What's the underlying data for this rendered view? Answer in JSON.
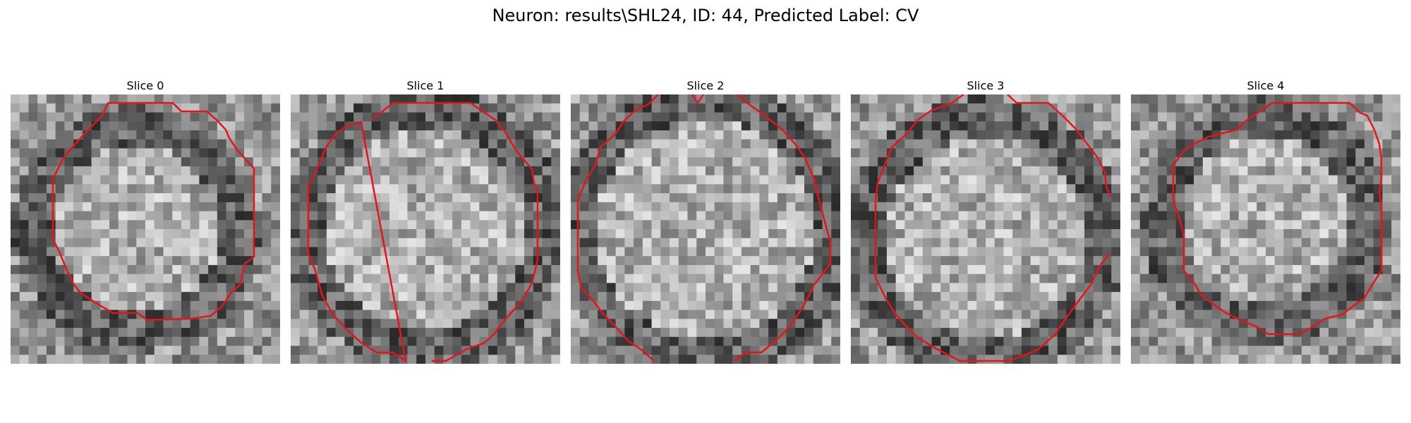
{
  "figure": {
    "title": "Neuron: results\\SHL24, ID: 44, Predicted Label: CV"
  },
  "panels": [
    {
      "title": "Slice 0"
    },
    {
      "title": "Slice 1"
    },
    {
      "title": "Slice 2"
    },
    {
      "title": "Slice 3"
    },
    {
      "title": "Slice 4"
    }
  ],
  "colors": {
    "contour": "#e8131a",
    "background": "#ffffff"
  }
}
